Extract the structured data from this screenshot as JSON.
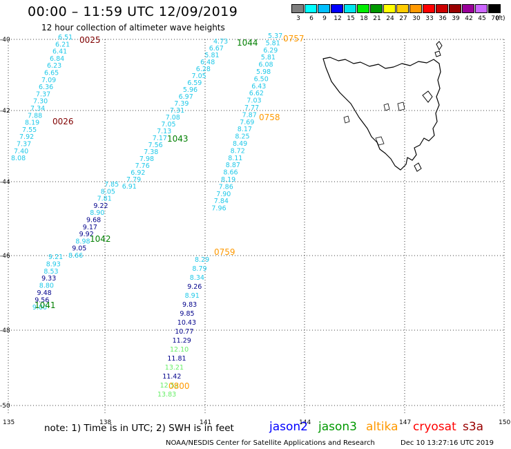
{
  "header": {
    "title": "00:00 – 11:59 UTC 12/09/2019",
    "subtitle": "12 hour collection of altimeter wave heights"
  },
  "colorbar": {
    "labels": [
      "3",
      "6",
      "9",
      "12",
      "15",
      "18",
      "21",
      "24",
      "27",
      "30",
      "33",
      "36",
      "39",
      "42",
      "45",
      "70"
    ],
    "unit": "(ft)",
    "colors": [
      "#7f7f7f",
      "#00ffff",
      "#00bfff",
      "#0000ff",
      "#00e5ee",
      "#00ee00",
      "#009900",
      "#ffff00",
      "#ffcc00",
      "#ff9900",
      "#ff0000",
      "#cc0000",
      "#990000",
      "#990099",
      "#cc66ff",
      "#000000"
    ]
  },
  "axes": {
    "lon_labels": [
      "135",
      "138",
      "141",
      "144",
      "147",
      "150"
    ],
    "lat_labels": [
      "-40",
      "-42",
      "-44",
      "-46",
      "-48",
      "-50"
    ]
  },
  "passes": [
    {
      "id": "0025",
      "label_color": "#800000",
      "values": [
        "6.51",
        "6.21",
        "6.41",
        "6.84",
        "6.23",
        "6.65",
        "7.09",
        "6.36",
        "7.37",
        "7.30",
        "7.34",
        "7.88",
        "8.19",
        "7.55",
        "7.92",
        "7.37",
        "7.40",
        "8.08"
      ],
      "colors": [
        "#1ec8e8",
        "#1ec8e8",
        "#1ec8e8",
        "#1ec8e8",
        "#1ec8e8",
        "#1ec8e8",
        "#1ec8e8",
        "#1ec8e8",
        "#1ec8e8",
        "#1ec8e8",
        "#1ec8e8",
        "#1ec8e8",
        "#1ec8e8",
        "#1ec8e8",
        "#1ec8e8",
        "#1ec8e8",
        "#1ec8e8",
        "#1ec8e8"
      ]
    },
    {
      "id": "0026",
      "label_color": "#800000",
      "values": [],
      "colors": []
    },
    {
      "id": "1041",
      "label_color": "#007f00",
      "values": [
        "9.21",
        "8.93",
        "8.53",
        "9.33",
        "8.80",
        "9.48",
        "9.56",
        "9.00"
      ],
      "colors": [
        "#1ec8e8",
        "#1ec8e8",
        "#1ec8e8",
        "#00008b",
        "#1ec8e8",
        "#00008b",
        "#00008b",
        "#1ec8e8"
      ]
    },
    {
      "id": "1042",
      "label_color": "#007f00",
      "values": [
        "7.85",
        "8.05",
        "7.81",
        "9.22",
        "8.90",
        "9.68",
        "9.17",
        "9.92",
        "8.98",
        "9.05",
        "8.66"
      ],
      "colors": [
        "#1ec8e8",
        "#1ec8e8",
        "#1ec8e8",
        "#00008b",
        "#1ec8e8",
        "#00008b",
        "#00008b",
        "#00008b",
        "#1ec8e8",
        "#00008b",
        "#1ec8e8"
      ]
    },
    {
      "id": "1043",
      "label_color": "#007f00",
      "values": [
        "4.73",
        "6.67",
        "5.81",
        "6.48",
        "6.28",
        "7.05",
        "6.59",
        "5.96",
        "6.97",
        "7.39",
        "7.31",
        "7.08",
        "7.05",
        "7.13",
        "7.17",
        "7.56",
        "7.38",
        "7.98",
        "7.76",
        "6.92",
        "7.79",
        "6.91"
      ],
      "colors": [
        "#1ec8e8",
        "#1ec8e8",
        "#1ec8e8",
        "#1ec8e8",
        "#1ec8e8",
        "#1ec8e8",
        "#1ec8e8",
        "#1ec8e8",
        "#1ec8e8",
        "#1ec8e8",
        "#1ec8e8",
        "#1ec8e8",
        "#1ec8e8",
        "#1ec8e8",
        "#1ec8e8",
        "#1ec8e8",
        "#1ec8e8",
        "#1ec8e8",
        "#1ec8e8",
        "#1ec8e8",
        "#1ec8e8",
        "#1ec8e8"
      ]
    },
    {
      "id": "1044",
      "label_color": "#007f00",
      "values": [],
      "colors": []
    },
    {
      "id": "0757",
      "label_color": "#ff9900",
      "values": [
        "5.37",
        "5.81",
        "6.29",
        "5.81",
        "6.08",
        "5.98",
        "6.50",
        "6.43",
        "6.62",
        "7.03",
        "7.77",
        "7.87",
        "7.69",
        "8.17",
        "8.25",
        "8.49",
        "8.72",
        "8.11",
        "8.87",
        "8.66",
        "8.19",
        "7.86",
        "7.90",
        "7.84",
        "7.96"
      ],
      "colors": [
        "#1ec8e8",
        "#1ec8e8",
        "#1ec8e8",
        "#1ec8e8",
        "#1ec8e8",
        "#1ec8e8",
        "#1ec8e8",
        "#1ec8e8",
        "#1ec8e8",
        "#1ec8e8",
        "#1ec8e8",
        "#1ec8e8",
        "#1ec8e8",
        "#1ec8e8",
        "#1ec8e8",
        "#1ec8e8",
        "#1ec8e8",
        "#1ec8e8",
        "#1ec8e8",
        "#1ec8e8",
        "#1ec8e8",
        "#1ec8e8",
        "#1ec8e8",
        "#1ec8e8",
        "#1ec8e8"
      ]
    },
    {
      "id": "0758",
      "label_color": "#ff9900",
      "values": [],
      "colors": []
    },
    {
      "id": "0759",
      "label_color": "#ff9900",
      "values": [],
      "colors": []
    },
    {
      "id": "0800",
      "label_color": "#ff9900",
      "values": [
        "8.29",
        "8.79",
        "8.34",
        "9.26",
        "8.91",
        "9.83",
        "9.85",
        "10.43",
        "10.77",
        "11.29",
        "12.10",
        "11.81",
        "13.21",
        "11.42",
        "12.53",
        "13.83"
      ],
      "colors": [
        "#1ec8e8",
        "#1ec8e8",
        "#1ec8e8",
        "#00008b",
        "#1ec8e8",
        "#00008b",
        "#00008b",
        "#00008b",
        "#00008b",
        "#00008b",
        "#66ee66",
        "#00008b",
        "#66ee66",
        "#00008b",
        "#66ee66",
        "#66ee66"
      ]
    }
  ],
  "footer": {
    "note": "note:  1) Time is in UTC;  2) SWH is in feet",
    "satellites": [
      {
        "name": "jason2",
        "color": "#0000ff"
      },
      {
        "name": "jason3",
        "color": "#009900"
      },
      {
        "name": "altika",
        "color": "#ff9900"
      },
      {
        "name": "cryosat",
        "color": "#ff0000"
      },
      {
        "name": "s3a",
        "color": "#990000"
      }
    ],
    "credit": "NOAA/NESDIS Center for Satellite Applications and Research",
    "timestamp": "Dec 10 13:27:16 UTC 2019"
  }
}
